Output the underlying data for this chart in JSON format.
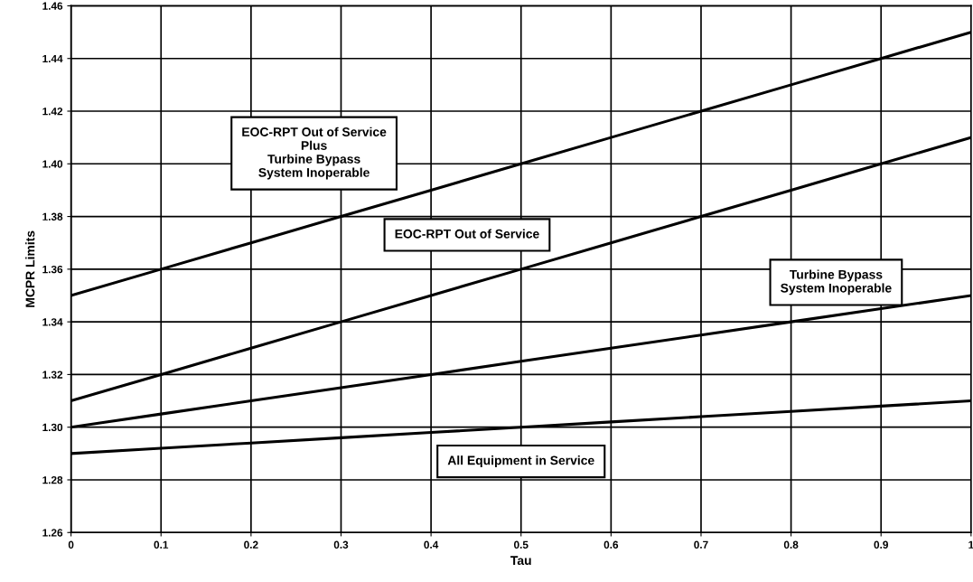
{
  "chart_data": {
    "type": "line",
    "xlabel": "Tau",
    "ylabel": "MCPR Limits",
    "x": [
      0,
      0.1,
      0.2,
      0.3,
      0.4,
      0.5,
      0.6,
      0.7,
      0.8,
      0.9,
      1
    ],
    "series": [
      {
        "name": "EOC-RPT Out of Service\nPlus\nTurbine Bypass\nSystem Inoperable",
        "color": "#000000",
        "values": [
          1.35,
          1.36,
          1.37,
          1.38,
          1.39,
          1.4,
          1.41,
          1.42,
          1.43,
          1.44,
          1.45
        ]
      },
      {
        "name": "EOC-RPT Out of Service",
        "color": "#000000",
        "values": [
          1.31,
          1.32,
          1.33,
          1.34,
          1.35,
          1.36,
          1.37,
          1.38,
          1.39,
          1.4,
          1.41
        ]
      },
      {
        "name": "Turbine Bypass\nSystem Inoperable",
        "color": "#000000",
        "values": [
          1.3,
          1.305,
          1.31,
          1.315,
          1.32,
          1.325,
          1.33,
          1.335,
          1.34,
          1.345,
          1.35
        ]
      },
      {
        "name": "All Equipment in Service",
        "color": "#000000",
        "values": [
          1.29,
          1.292,
          1.294,
          1.296,
          1.298,
          1.3,
          1.302,
          1.304,
          1.306,
          1.308,
          1.31
        ]
      }
    ],
    "xlim": [
      0,
      1
    ],
    "ylim": [
      1.26,
      1.46
    ],
    "xticks": [
      0,
      0.1,
      0.2,
      0.3,
      0.4,
      0.5,
      0.6,
      0.7,
      0.8,
      0.9,
      1
    ],
    "yticks": [
      {
        "value": 1.26,
        "label": "1.26"
      },
      {
        "value": 1.28,
        "label": "1.28"
      },
      {
        "value": 1.3,
        "label": "1.30"
      },
      {
        "value": 1.32,
        "label": "1.32"
      },
      {
        "value": 1.34,
        "label": "1.34"
      },
      {
        "value": 1.36,
        "label": "1.36"
      },
      {
        "value": 1.38,
        "label": "1.38"
      },
      {
        "value": 1.4,
        "label": "1.40"
      },
      {
        "value": 1.42,
        "label": "1.42"
      },
      {
        "value": 1.44,
        "label": "1.44"
      },
      {
        "value": 1.46,
        "label": "1.46"
      }
    ],
    "grid": true,
    "marker": "none",
    "line_style": "solid"
  }
}
